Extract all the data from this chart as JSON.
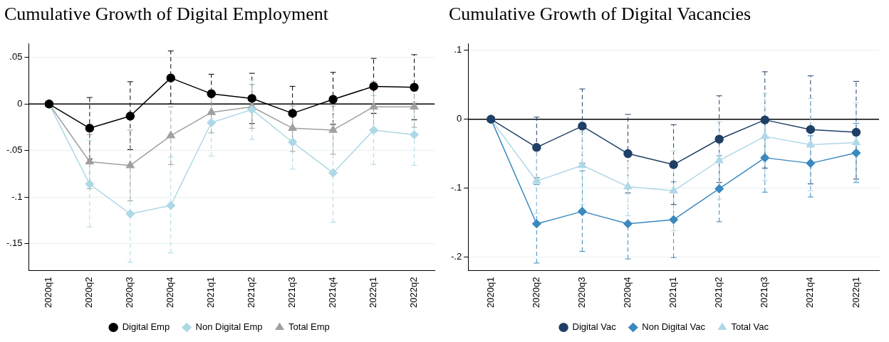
{
  "chart_data": [
    {
      "type": "line",
      "title": "Cumulative Growth of Digital Employment",
      "categories": [
        "2020q1",
        "2020q2",
        "2020q3",
        "2020q4",
        "2021q1",
        "2021q2",
        "2021q3",
        "2021q4",
        "2022q1",
        "2022q2"
      ],
      "ylim": [
        -0.179,
        0.065
      ],
      "yticks": [
        {
          "value": 0.05,
          "label": ".05"
        },
        0,
        {
          "value": -0.05,
          "label": "-.05"
        },
        {
          "value": -0.1,
          "label": "-.1"
        },
        {
          "value": -0.15,
          "label": "-.15"
        }
      ],
      "grid": "y",
      "legend": "bottom",
      "line_style": "solid",
      "ref_lines": [
        {
          "axis": "y",
          "value": 0,
          "color": "#000000"
        }
      ],
      "series": [
        {
          "name": "Digital Emp",
          "color": "#000000",
          "marker": "circle",
          "values": [
            0,
            -0.026,
            -0.013,
            0.028,
            0.011,
            0.006,
            -0.01,
            0.005,
            0.019,
            0.018
          ],
          "errors": [
            null,
            [
              -0.059,
              0.007
            ],
            [
              -0.049,
              0.024
            ],
            [
              0,
              0.057
            ],
            [
              -0.01,
              0.032
            ],
            [
              -0.021,
              0.033
            ],
            [
              -0.039,
              0.019
            ],
            [
              -0.022,
              0.034
            ],
            [
              -0.01,
              0.049
            ],
            [
              -0.017,
              0.053
            ]
          ]
        },
        {
          "name": "Non Digital Emp",
          "color": "#add8e6",
          "marker": "diamond",
          "values": [
            0,
            -0.086,
            -0.118,
            -0.109,
            -0.02,
            -0.006,
            -0.041,
            -0.074,
            -0.028,
            -0.033
          ],
          "errors": [
            null,
            [
              -0.132,
              -0.039
            ],
            [
              -0.17,
              -0.066
            ],
            [
              -0.16,
              -0.057
            ],
            [
              -0.056,
              0.015
            ],
            [
              -0.038,
              0.026
            ],
            [
              -0.07,
              -0.012
            ],
            [
              -0.127,
              -0.021
            ],
            [
              -0.065,
              0.009
            ],
            [
              -0.066,
              0.002
            ]
          ]
        },
        {
          "name": "Total Emp",
          "color": "#a0a0a0",
          "marker": "triangle",
          "values": [
            0,
            -0.062,
            -0.066,
            -0.034,
            -0.009,
            -0.003,
            -0.026,
            -0.028,
            -0.003,
            -0.003
          ],
          "errors": [
            null,
            [
              -0.091,
              -0.033
            ],
            [
              -0.104,
              -0.028
            ],
            [
              -0.065,
              -0.003
            ],
            [
              -0.031,
              0.015
            ],
            [
              -0.026,
              0.021
            ],
            [
              -0.051,
              -0.002
            ],
            [
              -0.054,
              -0.002
            ],
            [
              -0.03,
              0.024
            ],
            [
              -0.025,
              0.014
            ]
          ]
        }
      ]
    },
    {
      "type": "line",
      "title": "Cumulative Growth of Digital Vacancies",
      "categories": [
        "2020q1",
        "2020q2",
        "2020q3",
        "2020q4",
        "2021q1",
        "2021q2",
        "2021q3",
        "2021q4",
        "2022q1"
      ],
      "ylim": [
        -0.22,
        0.11
      ],
      "yticks": [
        {
          "value": 0.1,
          "label": ".1"
        },
        0,
        {
          "value": -0.1,
          "label": "-.1"
        },
        {
          "value": -0.2,
          "label": "-.2"
        }
      ],
      "grid": "y",
      "legend": "bottom",
      "line_style": "solid",
      "ref_lines": [
        {
          "axis": "y",
          "value": 0,
          "color": "#000000"
        }
      ],
      "series": [
        {
          "name": "Digital Vac",
          "color": "#1f3f66",
          "marker": "circle",
          "values": [
            0,
            -0.041,
            -0.01,
            -0.05,
            -0.066,
            -0.029,
            -0.001,
            -0.015,
            -0.019
          ],
          "errors": [
            null,
            [
              -0.085,
              0.003
            ],
            [
              -0.064,
              0.044
            ],
            [
              -0.107,
              0.007
            ],
            [
              -0.124,
              -0.008
            ],
            [
              -0.092,
              0.034
            ],
            [
              -0.071,
              0.069
            ],
            [
              -0.094,
              0.063
            ],
            [
              -0.087,
              0.055
            ]
          ]
        },
        {
          "name": "Non Digital Vac",
          "color": "#3a89bf",
          "marker": "diamond",
          "values": [
            0,
            -0.152,
            -0.134,
            -0.152,
            -0.146,
            -0.101,
            -0.056,
            -0.064,
            -0.049
          ],
          "errors": [
            null,
            [
              -0.209,
              -0.095
            ],
            [
              -0.192,
              -0.075
            ],
            [
              -0.203,
              -0.101
            ],
            [
              -0.201,
              -0.091
            ],
            [
              -0.149,
              -0.053
            ],
            [
              -0.106,
              -0.006
            ],
            [
              -0.113,
              -0.024
            ],
            [
              -0.092,
              -0.006
            ]
          ]
        },
        {
          "name": "Total Vac",
          "color": "#b0d8e8",
          "marker": "triangle",
          "values": [
            0,
            -0.09,
            -0.067,
            -0.098,
            -0.104,
            -0.06,
            -0.025,
            -0.037,
            -0.034
          ],
          "errors": [
            null,
            [
              -0.137,
              -0.043
            ],
            [
              -0.124,
              -0.019
            ],
            [
              -0.14,
              -0.056
            ],
            [
              -0.162,
              -0.046
            ],
            [
              -0.116,
              -0.004
            ],
            [
              -0.089,
              0.037
            ],
            [
              -0.104,
              0.03
            ],
            [
              -0.091,
              0.024
            ]
          ]
        }
      ]
    }
  ]
}
